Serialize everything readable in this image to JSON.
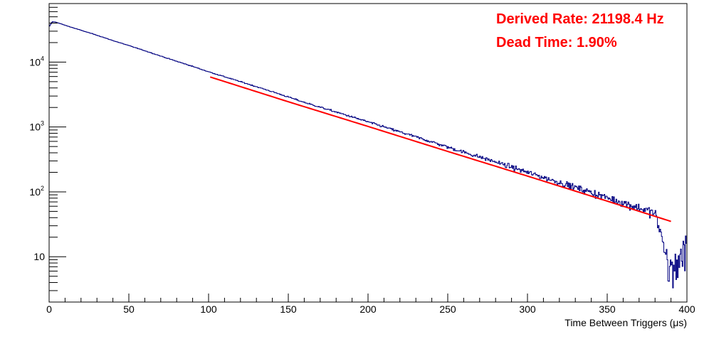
{
  "chart_data": {
    "type": "histogram",
    "title": "",
    "xlabel": "Time Between Triggers (μs)",
    "ylabel": "",
    "xlim": [
      0,
      400
    ],
    "ylim": [
      2,
      80000
    ],
    "y_scale": "log",
    "grid": false,
    "x_major_ticks": [
      0,
      50,
      100,
      150,
      200,
      250,
      300,
      350,
      400
    ],
    "y_major_ticks": [
      {
        "value": 10,
        "label": "10"
      },
      {
        "value": 100,
        "label": "10",
        "exp": "2"
      },
      {
        "value": 1000,
        "label": "10",
        "exp": "3"
      },
      {
        "value": 10000,
        "label": "10",
        "exp": "4"
      }
    ],
    "annotations": [
      {
        "text": "Derived Rate: 21198.4 Hz",
        "color": "#ff0000"
      },
      {
        "text": "Dead Time: 1.90%",
        "color": "#ff0000"
      }
    ],
    "series": [
      {
        "kind": "histogram",
        "color": "#000080",
        "x": [
          0,
          2,
          4,
          6,
          8,
          10,
          20,
          30,
          40,
          50,
          60,
          70,
          80,
          90,
          100,
          120,
          140,
          150,
          160,
          180,
          200,
          220,
          240,
          250,
          260,
          280,
          300,
          320,
          340,
          350,
          360,
          380,
          390,
          395,
          400
        ],
        "y": [
          35000,
          42000,
          41500,
          40000,
          38500,
          37000,
          31000,
          26000,
          21500,
          18000,
          15000,
          12400,
          10300,
          8600,
          7100,
          5000,
          3500,
          2900,
          2400,
          1700,
          1200,
          840,
          590,
          490,
          410,
          290,
          200,
          140,
          98,
          81,
          68,
          47,
          6,
          8,
          14
        ]
      },
      {
        "kind": "fit",
        "color": "#ff0000",
        "x": [
          101,
          150,
          200,
          250,
          300,
          350,
          390
        ],
        "y": [
          5900,
          2450,
          1020,
          420,
          175,
          72,
          35
        ]
      }
    ]
  }
}
